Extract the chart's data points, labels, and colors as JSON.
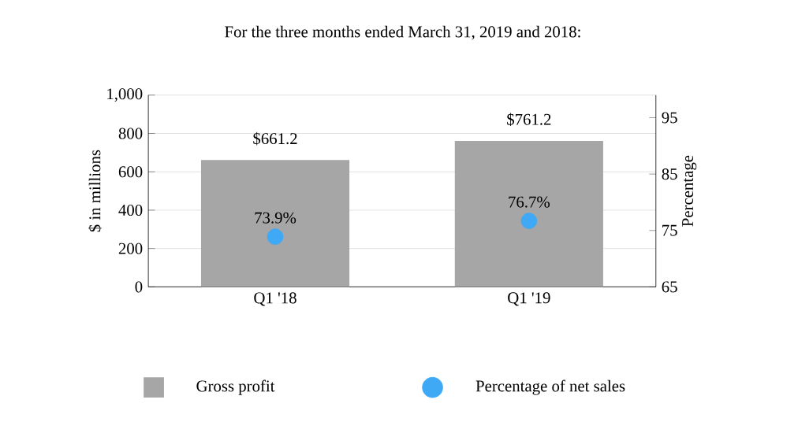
{
  "chart_data": {
    "type": "bar",
    "title": "For the three months ended March 31, 2019 and 2018:",
    "categories": [
      "Q1 '18",
      "Q1 '19"
    ],
    "ylabel": "$ in millions",
    "y2label": "Percentage",
    "series": [
      {
        "name": "Gross profit",
        "color": "#a6a6a6",
        "values": [
          661.2,
          761.2
        ],
        "value_labels": [
          "$661.2",
          "$761.2"
        ]
      },
      {
        "name": "Percentage of net sales",
        "type": "scatter",
        "axis": "y2",
        "marker": "circle",
        "color": "#3fa9f5",
        "values": [
          73.9,
          76.7
        ],
        "value_labels": [
          "73.9%",
          "76.7%"
        ]
      }
    ],
    "ylim": [
      0,
      1000
    ],
    "yticks": [
      0,
      200,
      400,
      600,
      800,
      {
        "value": 1000,
        "label": "1,000"
      }
    ],
    "y2lim": [
      65,
      99
    ],
    "y2ticks": [
      65,
      75,
      85,
      95
    ],
    "grid": "y",
    "legend": "bottom"
  }
}
